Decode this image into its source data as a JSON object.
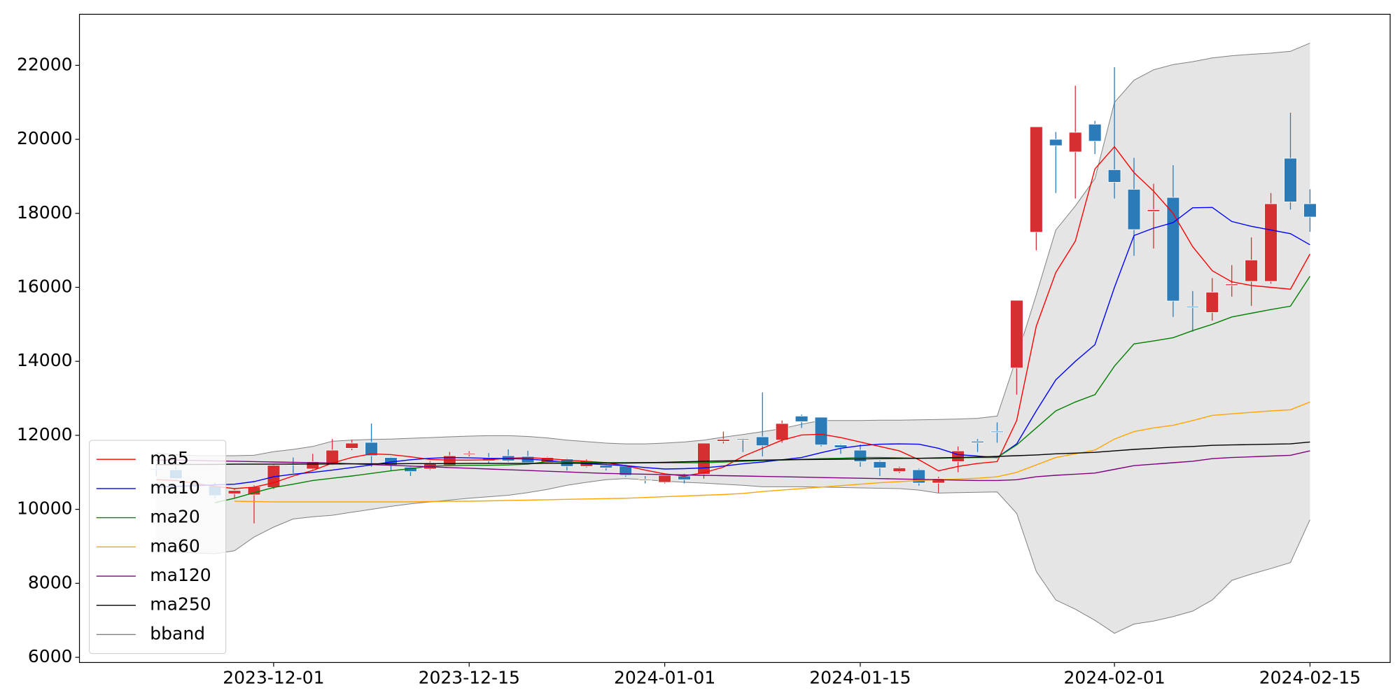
{
  "chart_data": {
    "type": "candlestick",
    "categories": [
      "2023-11-22",
      "2023-11-24",
      "2023-11-27",
      "2023-11-28",
      "2023-11-29",
      "2023-11-30",
      "2023-12-01",
      "2023-12-04",
      "2023-12-05",
      "2023-12-06",
      "2023-12-07",
      "2023-12-08",
      "2023-12-11",
      "2023-12-12",
      "2023-12-13",
      "2023-12-14",
      "2023-12-15",
      "2023-12-18",
      "2023-12-19",
      "2023-12-20",
      "2023-12-21",
      "2023-12-22",
      "2023-12-26",
      "2023-12-27",
      "2023-12-28",
      "2023-12-29",
      "2024-01-01",
      "2024-01-02",
      "2024-01-03",
      "2024-01-04",
      "2024-01-05",
      "2024-01-08",
      "2024-01-09",
      "2024-01-10",
      "2024-01-11",
      "2024-01-12",
      "2024-01-15",
      "2024-01-16",
      "2024-01-17",
      "2024-01-18",
      "2024-01-19",
      "2024-01-22",
      "2024-01-23",
      "2024-01-24",
      "2024-01-25",
      "2024-01-26",
      "2024-01-29",
      "2024-01-30",
      "2024-01-31",
      "2024-02-01",
      "2024-02-02",
      "2024-02-05",
      "2024-02-06",
      "2024-02-07",
      "2024-02-08",
      "2024-02-09",
      "2024-02-12",
      "2024-02-13",
      "2024-02-14",
      "2024-02-15"
    ],
    "candles": {
      "open": [
        11100,
        11070,
        10700,
        10630,
        10420,
        10390,
        10590,
        11230,
        11090,
        11210,
        11650,
        11810,
        11400,
        11140,
        11090,
        11190,
        11480,
        11400,
        11450,
        11430,
        11260,
        11360,
        11160,
        11190,
        11170,
        10810,
        10730,
        10900,
        10950,
        11840,
        11910,
        11960,
        11870,
        12520,
        12490,
        11740,
        11600,
        11290,
        11020,
        11070,
        10710,
        11290,
        11840,
        12110,
        13820,
        17490,
        20000,
        19660,
        20410,
        19180,
        18650,
        18050,
        18430,
        15480,
        15320,
        16050,
        16160,
        16160,
        19490,
        18260
      ],
      "high": [
        11230,
        11150,
        10750,
        10720,
        10560,
        10650,
        11230,
        11400,
        11500,
        11900,
        11880,
        12320,
        11420,
        11160,
        11300,
        11550,
        11570,
        11520,
        11620,
        11580,
        11420,
        11380,
        11350,
        11230,
        11200,
        10900,
        10960,
        10960,
        11800,
        12100,
        11920,
        13160,
        12400,
        12560,
        12500,
        11760,
        11750,
        11320,
        11150,
        11100,
        10880,
        11700,
        11900,
        12350,
        15650,
        20340,
        20200,
        21450,
        20500,
        21950,
        19500,
        18800,
        19300,
        15900,
        16250,
        16600,
        17350,
        18550,
        20720,
        18650
      ],
      "low": [
        10900,
        10800,
        10600,
        10300,
        10300,
        9620,
        10550,
        10980,
        11060,
        11200,
        11600,
        11150,
        11050,
        10900,
        11060,
        11170,
        11430,
        11250,
        11280,
        11220,
        11230,
        11050,
        11130,
        11050,
        10880,
        10700,
        10700,
        10700,
        10830,
        11780,
        11550,
        11430,
        11800,
        12200,
        11700,
        11500,
        11150,
        10900,
        10980,
        10640,
        10450,
        11000,
        11550,
        11800,
        13100,
        17000,
        18550,
        18400,
        19600,
        18400,
        16850,
        17050,
        15200,
        14800,
        15100,
        15750,
        15500,
        16100,
        18100,
        17500
      ],
      "close": [
        11080,
        10830,
        10650,
        10370,
        10510,
        10610,
        11190,
        11200,
        11290,
        11600,
        11790,
        11450,
        11190,
        11020,
        11260,
        11450,
        11510,
        11310,
        11310,
        11260,
        11400,
        11160,
        11310,
        11120,
        10920,
        10790,
        10920,
        10800,
        11790,
        11890,
        11880,
        11720,
        12320,
        12370,
        11740,
        11670,
        11290,
        11120,
        11120,
        10710,
        10830,
        11580,
        11800,
        12080,
        15650,
        20340,
        19830,
        20190,
        19950,
        18840,
        17560,
        18100,
        15630,
        15460,
        15870,
        16090,
        16740,
        18260,
        18310,
        17900
      ],
      "up_color": "#d62f32",
      "down_color": "#2b7bb9"
    },
    "series": [
      {
        "name": "ma5",
        "color": "#ff0000",
        "values": [
          10800,
          10780,
          10700,
          10620,
          10560,
          10600,
          10720,
          10900,
          11050,
          11250,
          11400,
          11500,
          11480,
          11420,
          11350,
          11330,
          11330,
          11340,
          11380,
          11400,
          11370,
          11330,
          11300,
          11260,
          11180,
          11060,
          10960,
          10900,
          10990,
          11140,
          11430,
          11650,
          11870,
          12010,
          12030,
          11940,
          11820,
          11700,
          11580,
          11340,
          11040,
          11160,
          11240,
          11290,
          12400,
          14950,
          16400,
          17250,
          19200,
          19800,
          19100,
          18600,
          18000,
          17100,
          16450,
          16150,
          16050,
          16000,
          15950,
          16900
        ]
      },
      {
        "name": "ma10",
        "color": "#0000ff",
        "values": [
          10600,
          10620,
          10640,
          10660,
          10680,
          10750,
          10880,
          10950,
          11000,
          11060,
          11130,
          11200,
          11280,
          11340,
          11380,
          11400,
          11390,
          11380,
          11370,
          11360,
          11320,
          11270,
          11230,
          11210,
          11180,
          11130,
          11090,
          11100,
          11120,
          11170,
          11230,
          11280,
          11340,
          11400,
          11530,
          11650,
          11720,
          11760,
          11770,
          11760,
          11650,
          11480,
          11440,
          11400,
          11770,
          12660,
          13500,
          14000,
          14450,
          16000,
          17400,
          17600,
          17750,
          18150,
          18160,
          17780,
          17650,
          17550,
          17450,
          17150
        ]
      },
      {
        "name": "ma20",
        "color": "#008000",
        "values": [
          null,
          null,
          null,
          10180,
          10300,
          10450,
          10590,
          10680,
          10780,
          10840,
          10900,
          10970,
          11040,
          11100,
          11170,
          11180,
          11190,
          11190,
          11200,
          11220,
          11290,
          11280,
          11270,
          11260,
          11260,
          11260,
          11260,
          11260,
          11260,
          11280,
          11300,
          11320,
          11330,
          11350,
          11370,
          11380,
          11400,
          11400,
          11390,
          11380,
          11380,
          11390,
          11400,
          11400,
          11740,
          12200,
          12660,
          12900,
          13100,
          13870,
          14470,
          14550,
          14640,
          14830,
          15000,
          15200,
          15300,
          15400,
          15490,
          16300
        ]
      },
      {
        "name": "ma60",
        "color": "#ffa500",
        "values": [
          null,
          null,
          null,
          null,
          10220,
          10210,
          10200,
          10200,
          10200,
          10200,
          10200,
          10200,
          10200,
          10200,
          10210,
          10220,
          10220,
          10230,
          10240,
          10250,
          10260,
          10270,
          10280,
          10290,
          10300,
          10320,
          10340,
          10360,
          10380,
          10400,
          10430,
          10480,
          10520,
          10560,
          10600,
          10640,
          10680,
          10720,
          10750,
          10780,
          10800,
          10820,
          10840,
          10880,
          11000,
          11200,
          11400,
          11500,
          11600,
          11900,
          12100,
          12200,
          12270,
          12400,
          12540,
          12580,
          12620,
          12660,
          12690,
          12900
        ]
      },
      {
        "name": "ma120",
        "color": "#800080",
        "values": [
          11330,
          11330,
          11320,
          11310,
          11300,
          11290,
          11280,
          11270,
          11260,
          11250,
          11230,
          11210,
          11190,
          11170,
          11150,
          11130,
          11110,
          11090,
          11070,
          11050,
          11030,
          11010,
          10990,
          10970,
          10960,
          10950,
          10940,
          10930,
          10920,
          10910,
          10900,
          10890,
          10880,
          10870,
          10860,
          10850,
          10840,
          10830,
          10820,
          10810,
          10800,
          10790,
          10780,
          10780,
          10800,
          10880,
          10920,
          10950,
          10980,
          11080,
          11180,
          11220,
          11260,
          11300,
          11370,
          11400,
          11420,
          11440,
          11460,
          11580
        ]
      },
      {
        "name": "ma250",
        "color": "#000000",
        "values": [
          11210,
          11210,
          11215,
          11215,
          11220,
          11220,
          11220,
          11225,
          11225,
          11225,
          11230,
          11230,
          11230,
          11235,
          11235,
          11235,
          11240,
          11240,
          11240,
          11240,
          11245,
          11245,
          11245,
          11250,
          11250,
          11260,
          11270,
          11285,
          11300,
          11310,
          11320,
          11330,
          11340,
          11345,
          11350,
          11355,
          11360,
          11370,
          11375,
          11380,
          11390,
          11400,
          11410,
          11430,
          11450,
          11470,
          11500,
          11520,
          11540,
          11580,
          11620,
          11650,
          11680,
          11700,
          11730,
          11740,
          11750,
          11760,
          11770,
          11820
        ]
      }
    ],
    "bband": {
      "name": "bband",
      "color": "#808080",
      "fill": "#e5e5e5",
      "upper": [
        11520,
        11480,
        11450,
        11450,
        11450,
        11460,
        11560,
        11620,
        11700,
        11840,
        11870,
        11890,
        11900,
        11920,
        11940,
        11960,
        11980,
        11990,
        11990,
        11970,
        11930,
        11870,
        11830,
        11790,
        11770,
        11770,
        11790,
        11820,
        11870,
        11950,
        12020,
        12100,
        12180,
        12300,
        12400,
        12400,
        12400,
        12410,
        12410,
        12420,
        12430,
        12440,
        12460,
        12520,
        14110,
        15800,
        17550,
        18200,
        18940,
        21000,
        21600,
        21880,
        22020,
        22100,
        22200,
        22260,
        22300,
        22330,
        22380,
        22600
      ],
      "lower": [
        8900,
        8850,
        8820,
        8800,
        8880,
        9250,
        9520,
        9740,
        9800,
        9840,
        9920,
        10000,
        10080,
        10150,
        10200,
        10250,
        10300,
        10340,
        10380,
        10450,
        10540,
        10650,
        10730,
        10800,
        10830,
        10800,
        10760,
        10730,
        10710,
        10680,
        10650,
        10610,
        10610,
        10610,
        10600,
        10590,
        10580,
        10570,
        10560,
        10520,
        10440,
        10450,
        10460,
        10470,
        9890,
        8320,
        7550,
        7300,
        7000,
        6650,
        6900,
        6980,
        7100,
        7250,
        7550,
        8080,
        8250,
        8400,
        8560,
        9720
      ]
    },
    "ylim": [
      5860,
      23380
    ],
    "yticks": [
      6000,
      8000,
      10000,
      12000,
      14000,
      16000,
      18000,
      20000,
      22000
    ],
    "xticks": [
      "2023-12-01",
      "2023-12-15",
      "2024-01-01",
      "2024-01-15",
      "2024-02-01",
      "2024-02-15"
    ],
    "legend": "lower left",
    "grid": false
  }
}
